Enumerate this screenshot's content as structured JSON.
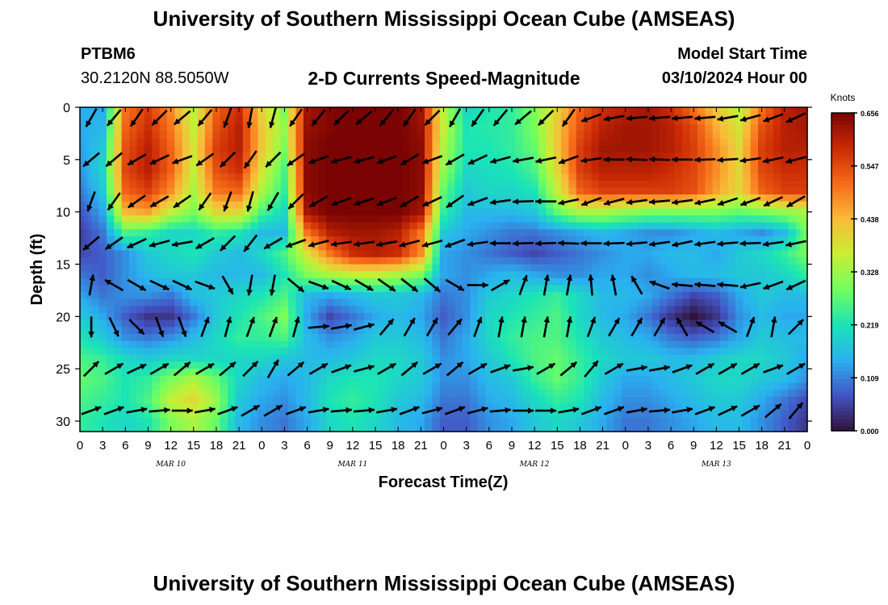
{
  "header": {
    "title": "University of Southern Mississippi Ocean Cube (AMSEAS)",
    "station_id": "PTBM6",
    "station_coords": "30.2120N  88.5050W",
    "plot_title": "2-D Currents Speed-Magnitude",
    "model_start_label": "Model Start Time",
    "model_start_value": "03/10/2024 Hour 00"
  },
  "footer": {
    "title": "University of Southern Mississippi Ocean Cube (AMSEAS)"
  },
  "colors": {
    "colormap": [
      "#30123b",
      "#4454c4",
      "#2ab0f0",
      "#1ae4b6",
      "#72fe5e",
      "#c8ef34",
      "#faba39",
      "#f66b19",
      "#ca2a04",
      "#7a0403"
    ],
    "arrow": "#000000"
  },
  "chart_data": {
    "type": "heatmap",
    "xlabel": "Forecast Time(Z)",
    "ylabel": "Depth (ft)",
    "colorbar_label": "Knots",
    "x_tick_labels": [
      "0",
      "3",
      "6",
      "9",
      "12",
      "15",
      "18",
      "21",
      "0",
      "3",
      "6",
      "9",
      "12",
      "15",
      "18",
      "21",
      "0",
      "3",
      "6",
      "9",
      "12",
      "15",
      "18",
      "21",
      "0",
      "3",
      "6",
      "9",
      "12",
      "15",
      "18",
      "21",
      "0"
    ],
    "day_labels": [
      "MAR 10",
      "MAR 11",
      "MAR 12",
      "MAR 13"
    ],
    "xlim": [
      0,
      96
    ],
    "y_ticks": [
      0,
      5,
      10,
      15,
      20,
      25,
      30
    ],
    "ylim": [
      0,
      31
    ],
    "y_inverted": true,
    "colorbar_ticks": [
      "0.656",
      "0.547",
      "0.438",
      "0.328",
      "0.219",
      "0.109",
      "0.000"
    ],
    "clim": [
      0,
      0.656
    ],
    "depths_ft": [
      0,
      2,
      4,
      6,
      8,
      10,
      12,
      14,
      16,
      18,
      20,
      22,
      24,
      26,
      28,
      30
    ],
    "times_h": [
      0,
      3,
      6,
      9,
      12,
      15,
      18,
      21,
      24,
      27,
      30,
      33,
      36,
      39,
      42,
      45,
      48,
      51,
      54,
      57,
      60,
      63,
      66,
      69,
      72,
      75,
      78,
      81,
      84,
      87,
      90,
      93,
      96
    ],
    "speed_knots": [
      [
        0.15,
        0.14,
        0.5,
        0.56,
        0.48,
        0.35,
        0.52,
        0.58,
        0.4,
        0.3,
        0.62,
        0.65,
        0.66,
        0.66,
        0.66,
        0.62,
        0.35,
        0.2,
        0.22,
        0.24,
        0.3,
        0.4,
        0.52,
        0.58,
        0.6,
        0.62,
        0.58,
        0.5,
        0.42,
        0.35,
        0.5,
        0.6,
        0.62
      ],
      [
        0.14,
        0.16,
        0.52,
        0.58,
        0.5,
        0.36,
        0.54,
        0.6,
        0.42,
        0.32,
        0.63,
        0.65,
        0.66,
        0.66,
        0.66,
        0.63,
        0.36,
        0.22,
        0.23,
        0.24,
        0.3,
        0.42,
        0.54,
        0.6,
        0.62,
        0.62,
        0.6,
        0.55,
        0.45,
        0.38,
        0.54,
        0.6,
        0.62
      ],
      [
        0.13,
        0.18,
        0.54,
        0.6,
        0.52,
        0.38,
        0.56,
        0.6,
        0.42,
        0.3,
        0.64,
        0.66,
        0.66,
        0.66,
        0.66,
        0.64,
        0.34,
        0.22,
        0.22,
        0.24,
        0.28,
        0.42,
        0.56,
        0.62,
        0.62,
        0.62,
        0.6,
        0.56,
        0.48,
        0.4,
        0.56,
        0.6,
        0.6
      ],
      [
        0.12,
        0.2,
        0.55,
        0.6,
        0.52,
        0.36,
        0.54,
        0.58,
        0.38,
        0.26,
        0.64,
        0.66,
        0.66,
        0.66,
        0.66,
        0.64,
        0.32,
        0.2,
        0.21,
        0.22,
        0.26,
        0.4,
        0.56,
        0.6,
        0.6,
        0.6,
        0.58,
        0.55,
        0.48,
        0.4,
        0.55,
        0.58,
        0.58
      ],
      [
        0.1,
        0.18,
        0.52,
        0.56,
        0.48,
        0.34,
        0.5,
        0.52,
        0.34,
        0.24,
        0.64,
        0.66,
        0.66,
        0.66,
        0.66,
        0.64,
        0.28,
        0.18,
        0.2,
        0.2,
        0.22,
        0.36,
        0.52,
        0.56,
        0.56,
        0.56,
        0.56,
        0.54,
        0.46,
        0.4,
        0.52,
        0.56,
        0.56
      ],
      [
        0.07,
        0.14,
        0.44,
        0.46,
        0.36,
        0.3,
        0.4,
        0.4,
        0.26,
        0.2,
        0.62,
        0.66,
        0.66,
        0.66,
        0.66,
        0.62,
        0.24,
        0.16,
        0.16,
        0.16,
        0.18,
        0.28,
        0.34,
        0.34,
        0.32,
        0.3,
        0.3,
        0.3,
        0.3,
        0.28,
        0.3,
        0.32,
        0.34
      ],
      [
        0.05,
        0.1,
        0.26,
        0.24,
        0.2,
        0.2,
        0.24,
        0.22,
        0.16,
        0.16,
        0.5,
        0.6,
        0.62,
        0.62,
        0.6,
        0.5,
        0.18,
        0.14,
        0.12,
        0.1,
        0.1,
        0.12,
        0.14,
        0.16,
        0.14,
        0.12,
        0.12,
        0.14,
        0.16,
        0.14,
        0.12,
        0.16,
        0.3
      ],
      [
        0.06,
        0.08,
        0.12,
        0.18,
        0.2,
        0.22,
        0.18,
        0.16,
        0.2,
        0.26,
        0.38,
        0.5,
        0.58,
        0.6,
        0.58,
        0.48,
        0.14,
        0.12,
        0.1,
        0.08,
        0.06,
        0.08,
        0.1,
        0.12,
        0.14,
        0.14,
        0.16,
        0.16,
        0.14,
        0.18,
        0.2,
        0.24,
        0.3
      ],
      [
        0.1,
        0.08,
        0.12,
        0.16,
        0.18,
        0.18,
        0.16,
        0.16,
        0.16,
        0.22,
        0.3,
        0.34,
        0.36,
        0.36,
        0.34,
        0.3,
        0.14,
        0.12,
        0.14,
        0.16,
        0.14,
        0.12,
        0.12,
        0.14,
        0.14,
        0.12,
        0.14,
        0.16,
        0.16,
        0.18,
        0.18,
        0.2,
        0.24
      ],
      [
        0.14,
        0.1,
        0.12,
        0.12,
        0.1,
        0.16,
        0.18,
        0.2,
        0.22,
        0.26,
        0.16,
        0.14,
        0.16,
        0.18,
        0.18,
        0.16,
        0.1,
        0.12,
        0.18,
        0.2,
        0.22,
        0.24,
        0.2,
        0.16,
        0.16,
        0.14,
        0.1,
        0.06,
        0.08,
        0.14,
        0.18,
        0.16,
        0.16
      ],
      [
        0.18,
        0.14,
        0.08,
        0.04,
        0.04,
        0.1,
        0.18,
        0.22,
        0.26,
        0.3,
        0.14,
        0.06,
        0.1,
        0.14,
        0.16,
        0.14,
        0.08,
        0.12,
        0.2,
        0.22,
        0.24,
        0.26,
        0.2,
        0.16,
        0.14,
        0.1,
        0.04,
        0.0,
        0.04,
        0.12,
        0.16,
        0.14,
        0.14
      ],
      [
        0.22,
        0.18,
        0.12,
        0.1,
        0.12,
        0.16,
        0.2,
        0.24,
        0.24,
        0.26,
        0.16,
        0.12,
        0.14,
        0.18,
        0.18,
        0.16,
        0.1,
        0.14,
        0.2,
        0.24,
        0.26,
        0.26,
        0.22,
        0.18,
        0.16,
        0.14,
        0.1,
        0.08,
        0.1,
        0.14,
        0.18,
        0.16,
        0.16
      ],
      [
        0.26,
        0.24,
        0.2,
        0.18,
        0.2,
        0.2,
        0.2,
        0.2,
        0.2,
        0.18,
        0.16,
        0.16,
        0.18,
        0.2,
        0.2,
        0.18,
        0.12,
        0.14,
        0.18,
        0.22,
        0.26,
        0.28,
        0.24,
        0.2,
        0.18,
        0.18,
        0.16,
        0.16,
        0.18,
        0.2,
        0.2,
        0.18,
        0.14
      ],
      [
        0.28,
        0.26,
        0.22,
        0.24,
        0.3,
        0.34,
        0.28,
        0.2,
        0.16,
        0.14,
        0.16,
        0.2,
        0.22,
        0.22,
        0.2,
        0.18,
        0.12,
        0.12,
        0.16,
        0.18,
        0.24,
        0.28,
        0.24,
        0.18,
        0.14,
        0.14,
        0.16,
        0.18,
        0.2,
        0.2,
        0.18,
        0.16,
        0.12
      ],
      [
        0.26,
        0.24,
        0.22,
        0.26,
        0.36,
        0.4,
        0.32,
        0.18,
        0.14,
        0.12,
        0.16,
        0.22,
        0.24,
        0.22,
        0.18,
        0.16,
        0.1,
        0.1,
        0.14,
        0.16,
        0.2,
        0.24,
        0.22,
        0.16,
        0.12,
        0.12,
        0.14,
        0.16,
        0.18,
        0.18,
        0.14,
        0.1,
        0.06
      ],
      [
        0.24,
        0.22,
        0.2,
        0.22,
        0.3,
        0.34,
        0.28,
        0.16,
        0.12,
        0.1,
        0.14,
        0.2,
        0.22,
        0.2,
        0.16,
        0.14,
        0.08,
        0.08,
        0.12,
        0.14,
        0.18,
        0.2,
        0.18,
        0.14,
        0.1,
        0.1,
        0.12,
        0.14,
        0.16,
        0.16,
        0.12,
        0.08,
        0.04
      ]
    ],
    "direction_deg": [
      [
        210,
        220,
        215,
        225,
        230,
        220,
        200,
        190,
        195,
        215,
        220,
        225,
        230,
        220,
        215,
        225,
        210,
        215,
        220,
        230,
        225,
        215,
        250,
        260,
        265,
        265,
        265,
        265,
        260,
        255,
        250,
        245,
        245
      ],
      [
        205,
        215,
        220,
        225,
        230,
        215,
        200,
        190,
        200,
        215,
        225,
        230,
        235,
        225,
        215,
        230,
        210,
        215,
        225,
        235,
        230,
        225,
        255,
        265,
        270,
        270,
        268,
        265,
        262,
        258,
        252,
        248,
        248
      ],
      [
        230,
        230,
        240,
        245,
        250,
        235,
        225,
        215,
        225,
        235,
        250,
        255,
        255,
        250,
        240,
        250,
        240,
        245,
        255,
        260,
        258,
        250,
        262,
        270,
        272,
        272,
        270,
        268,
        266,
        262,
        258,
        255,
        252
      ],
      [
        225,
        230,
        240,
        245,
        240,
        225,
        210,
        205,
        220,
        235,
        250,
        258,
        260,
        255,
        245,
        255,
        245,
        255,
        262,
        268,
        270,
        262,
        260,
        265,
        270,
        272,
        270,
        268,
        264,
        262,
        258,
        255,
        250
      ],
      [
        200,
        215,
        235,
        240,
        235,
        215,
        200,
        195,
        210,
        225,
        240,
        250,
        252,
        250,
        240,
        245,
        235,
        250,
        262,
        268,
        270,
        258,
        250,
        255,
        262,
        265,
        262,
        258,
        252,
        250,
        245,
        240,
        240
      ],
      [
        210,
        220,
        230,
        235,
        230,
        215,
        205,
        200,
        215,
        228,
        242,
        252,
        254,
        250,
        242,
        245,
        238,
        250,
        260,
        265,
        265,
        262,
        258,
        262,
        265,
        265,
        262,
        258,
        255,
        252,
        248,
        244,
        242
      ],
      [
        230,
        235,
        245,
        255,
        260,
        240,
        225,
        218,
        240,
        250,
        255,
        262,
        262,
        260,
        255,
        255,
        250,
        262,
        270,
        268,
        268,
        272,
        270,
        268,
        265,
        262,
        258,
        262,
        265,
        268,
        262,
        258,
        250
      ],
      [
        20,
        350,
        300,
        305,
        300,
        290,
        280,
        270,
        220,
        300,
        270,
        275,
        278,
        282,
        285,
        290,
        285,
        280,
        275,
        255,
        230,
        210,
        180,
        170,
        175,
        240,
        280,
        285,
        280,
        260,
        250,
        240,
        225
      ],
      [
        10,
        300,
        120,
        115,
        115,
        110,
        150,
        190,
        190,
        130,
        110,
        115,
        120,
        125,
        128,
        130,
        120,
        90,
        60,
        20,
        10,
        10,
        355,
        350,
        330,
        290,
        275,
        275,
        275,
        258,
        250,
        245,
        225
      ],
      [
        330,
        240,
        225,
        250,
        210,
        200,
        210,
        200,
        45,
        200,
        200,
        205,
        210,
        200,
        190,
        185,
        45,
        35,
        30,
        120,
        200,
        190,
        200,
        130,
        290,
        280,
        110,
        100,
        95,
        80,
        140,
        140,
        140
      ],
      [
        180,
        155,
        135,
        160,
        160,
        20,
        15,
        20,
        20,
        15,
        85,
        80,
        75,
        40,
        30,
        30,
        40,
        20,
        10,
        10,
        10,
        10,
        20,
        30,
        30,
        30,
        330,
        300,
        300,
        20,
        10,
        45,
        135
      ],
      [
        110,
        80,
        150,
        170,
        200,
        150,
        30,
        20,
        20,
        10,
        10,
        350,
        345,
        40,
        30,
        40,
        30,
        40,
        45,
        30,
        10,
        10,
        20,
        40,
        80,
        100,
        90,
        80,
        60,
        60,
        70,
        60,
        30
      ],
      [
        45,
        60,
        65,
        60,
        50,
        60,
        50,
        45,
        30,
        50,
        60,
        70,
        75,
        60,
        50,
        60,
        50,
        60,
        70,
        80,
        60,
        50,
        40,
        60,
        80,
        80,
        70,
        60,
        60,
        60,
        70,
        60,
        30
      ],
      [
        65,
        65,
        70,
        80,
        90,
        80,
        60,
        50,
        45,
        60,
        70,
        80,
        80,
        70,
        60,
        60,
        60,
        70,
        80,
        90,
        100,
        90,
        60,
        50,
        70,
        80,
        70,
        60,
        60,
        60,
        60,
        50,
        30
      ],
      [
        70,
        70,
        80,
        85,
        90,
        80,
        70,
        60,
        60,
        70,
        80,
        85,
        85,
        80,
        70,
        75,
        70,
        75,
        85,
        90,
        90,
        80,
        70,
        70,
        80,
        85,
        80,
        70,
        65,
        60,
        50,
        40,
        20
      ],
      [
        70,
        70,
        80,
        85,
        90,
        80,
        70,
        60,
        60,
        70,
        80,
        85,
        85,
        80,
        70,
        75,
        70,
        75,
        85,
        90,
        90,
        80,
        70,
        70,
        80,
        85,
        80,
        70,
        65,
        60,
        50,
        40,
        160
      ]
    ]
  }
}
